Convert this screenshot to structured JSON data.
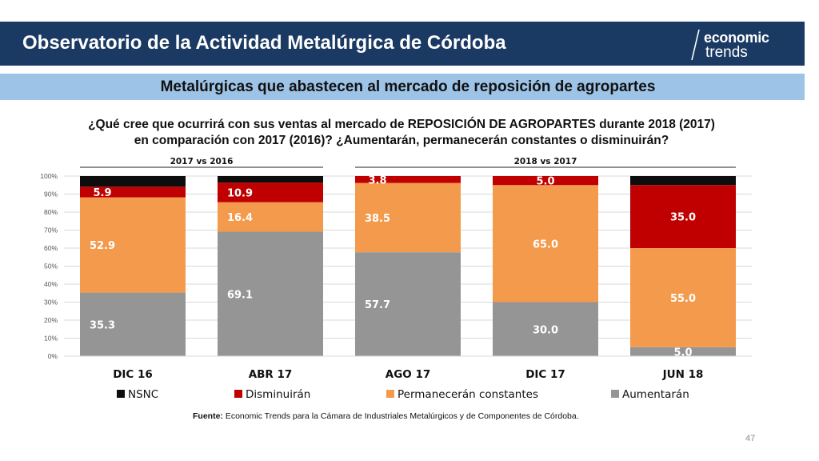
{
  "header": {
    "title": "Observatorio de la Actividad Metalúrgica de Córdoba"
  },
  "logo": {
    "top": "economic",
    "bottom": "trends"
  },
  "subtitle": "Metalúrgicas que abastecen al mercado de reposición de agropartes",
  "question": {
    "line1": "¿Qué cree que ocurrirá con sus ventas al mercado de REPOSICIÓN DE AGROPARTES durante 2018 (2017)",
    "line2": "en comparación con 2017 (2016)? ¿Aumentarán, permanecerán constantes o disminuirán?"
  },
  "chart_data": {
    "type": "bar",
    "stacked": true,
    "categories": [
      "DIC 16",
      "ABR 17",
      "AGO 17",
      "DIC 17",
      "JUN 18"
    ],
    "ylim": [
      0,
      100
    ],
    "yticks": [
      "0%",
      "10%",
      "20%",
      "30%",
      "40%",
      "50%",
      "60%",
      "70%",
      "80%",
      "90%",
      "100%"
    ],
    "grid": true,
    "legend_position": "bottom",
    "group_labels": [
      {
        "text": "2017 vs 2016",
        "categories": [
          "DIC 16",
          "ABR 17"
        ]
      },
      {
        "text": "2018 vs 2017",
        "categories": [
          "AGO 17",
          "DIC 17",
          "JUN 18"
        ]
      }
    ],
    "series": [
      {
        "name": "Aumentarán",
        "color": "#959595",
        "values": [
          35.3,
          69.1,
          57.7,
          30.0,
          5.0
        ],
        "labels": [
          "35.3",
          "69.1",
          "57.7",
          "30.0",
          "5.0"
        ]
      },
      {
        "name": "Permanecerán constantes",
        "color": "#f39a4c",
        "values": [
          52.9,
          16.4,
          38.5,
          65.0,
          55.0
        ],
        "labels": [
          "52.9",
          "16.4",
          "38.5",
          "65.0",
          "55.0"
        ]
      },
      {
        "name": "Disminuirán",
        "color": "#c00000",
        "values": [
          5.9,
          10.9,
          3.8,
          5.0,
          35.0
        ],
        "labels": [
          "5.9",
          "10.9",
          "3.8",
          "5.0",
          "35.0"
        ]
      },
      {
        "name": "NSNC",
        "color": "#0d0d0d",
        "values": [
          5.9,
          3.6,
          0.0,
          0.0,
          5.0
        ],
        "labels": [
          "",
          "",
          "",
          "",
          ""
        ]
      }
    ],
    "legend_order": [
      "NSNC",
      "Disminuirán",
      "Permanecerán constantes",
      "Aumentarán"
    ]
  },
  "source": {
    "label": "Fuente:",
    "text": " Economic Trends para la Cámara de Industriales Metalúrgicos y de Componentes de Córdoba."
  },
  "page_number": "47"
}
